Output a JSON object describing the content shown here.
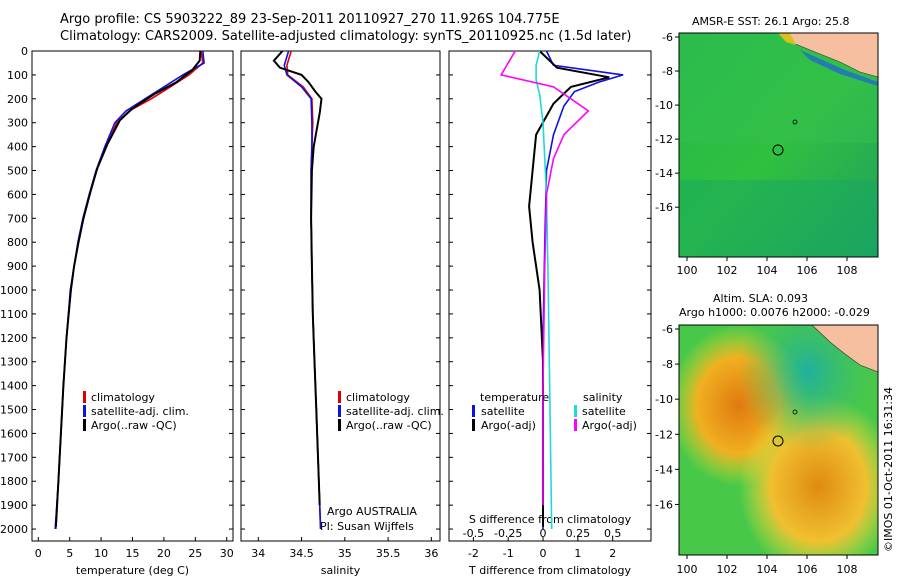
{
  "header": {
    "line1": "Argo profile: CS 5903222_89 23-Sep-2011 20110927_270 11.926S 104.775E",
    "line2": "Climatology: CARS2009. Satellite-adjusted climatology: synTS_20110925.nc (1.5d later)"
  },
  "colors": {
    "climatology": "#e00000",
    "satellite": "#1010e0",
    "argo": "#000000",
    "salinity_sat": "#20d8e0",
    "salinity_argo": "#ff00ff"
  },
  "depth_ticks": [
    0,
    100,
    200,
    300,
    400,
    500,
    600,
    700,
    800,
    900,
    1000,
    1100,
    1200,
    1300,
    1400,
    1500,
    1600,
    1700,
    1800,
    1900,
    2000
  ],
  "legend_ts": [
    "climatology",
    "satellite-adj. clim.",
    "Argo(..raw -QC)"
  ],
  "legend_diff": {
    "temp_head": "temperature",
    "sal_head": "salinity",
    "sat": "satellite",
    "argo": "Argo(-adj)"
  },
  "float_info": {
    "line1": "Argo AUSTRALIA",
    "line2": "PI: Susan Wijffels"
  },
  "map_sst": {
    "title": "AMSR-E SST: 26.1  Argo: 25.8",
    "ylabels": [
      "-6",
      "-8",
      "-10",
      "-12",
      "-14",
      "-16"
    ],
    "xlabels": [
      "100",
      "102",
      "104",
      "106",
      "108"
    ]
  },
  "map_sla": {
    "title1": "Altim. SLA: 0.093",
    "title2": "Argo h1000: 0.0076 h2000: -0.029",
    "ylabels": [
      "-6",
      "-8",
      "-10",
      "-12",
      "-14",
      "-16"
    ],
    "xlabels": [
      "100",
      "102",
      "104",
      "106",
      "108"
    ]
  },
  "footer": "©IMOS 01-Oct-2011 16:31:34",
  "chart_data": [
    {
      "type": "line",
      "xlabel": "temperature (deg C)",
      "ylim": [
        2050,
        0
      ],
      "xlim": [
        -1,
        31
      ],
      "xticks": [
        0,
        5,
        10,
        15,
        20,
        25,
        30
      ],
      "series": [
        {
          "name": "climatology",
          "color": "#e00000",
          "points": [
            [
              25.9,
              0
            ],
            [
              26.2,
              50
            ],
            [
              24,
              100
            ],
            [
              21,
              150
            ],
            [
              18,
              200
            ],
            [
              14.5,
              250
            ],
            [
              12.5,
              300
            ],
            [
              10.8,
              400
            ],
            [
              9.3,
              500
            ],
            [
              8.2,
              600
            ],
            [
              7.2,
              700
            ],
            [
              6.4,
              800
            ],
            [
              5.7,
              900
            ],
            [
              5.2,
              1000
            ],
            [
              4.5,
              1200
            ],
            [
              4.0,
              1400
            ],
            [
              3.6,
              1600
            ],
            [
              3.2,
              1800
            ],
            [
              2.8,
              2000
            ]
          ]
        },
        {
          "name": "satellite-adj. clim.",
          "color": "#1010e0",
          "points": [
            [
              26.2,
              0
            ],
            [
              26.4,
              50
            ],
            [
              23,
              100
            ],
            [
              20,
              150
            ],
            [
              17,
              200
            ],
            [
              14,
              250
            ],
            [
              12.2,
              300
            ],
            [
              10.6,
              400
            ],
            [
              9.2,
              500
            ],
            [
              8.1,
              600
            ],
            [
              7.1,
              700
            ],
            [
              6.3,
              800
            ],
            [
              5.7,
              900
            ],
            [
              5.1,
              1000
            ],
            [
              4.5,
              1200
            ],
            [
              4.0,
              1400
            ],
            [
              3.6,
              1600
            ],
            [
              3.2,
              1800
            ],
            [
              2.7,
              2000
            ]
          ]
        },
        {
          "name": "Argo(..raw -QC)",
          "color": "#000000",
          "points": [
            [
              25.8,
              0
            ],
            [
              25.7,
              40
            ],
            [
              24.5,
              80
            ],
            [
              22,
              130
            ],
            [
              18.5,
              180
            ],
            [
              15,
              240
            ],
            [
              13,
              290
            ],
            [
              11,
              390
            ],
            [
              9.4,
              490
            ],
            [
              8.3,
              590
            ],
            [
              7.2,
              700
            ],
            [
              6.4,
              800
            ],
            [
              5.7,
              900
            ],
            [
              5.2,
              1000
            ],
            [
              4.5,
              1200
            ],
            [
              4.0,
              1400
            ],
            [
              3.6,
              1600
            ],
            [
              3.2,
              1800
            ],
            [
              2.8,
              1990
            ]
          ]
        }
      ]
    },
    {
      "type": "line",
      "xlabel": "salinity",
      "ylim": [
        2050,
        0
      ],
      "xlim": [
        33.8,
        36.1
      ],
      "xticks": [
        34,
        34.5,
        35,
        35.5,
        36
      ],
      "series": [
        {
          "name": "climatology",
          "color": "#e00000",
          "points": [
            [
              34.38,
              0
            ],
            [
              34.33,
              60
            ],
            [
              34.34,
              100
            ],
            [
              34.52,
              150
            ],
            [
              34.62,
              200
            ],
            [
              34.63,
              300
            ],
            [
              34.62,
              400
            ],
            [
              34.61,
              500
            ],
            [
              34.61,
              700
            ],
            [
              34.62,
              900
            ],
            [
              34.63,
              1100
            ],
            [
              34.65,
              1300
            ],
            [
              34.67,
              1500
            ],
            [
              34.69,
              1700
            ],
            [
              34.71,
              1900
            ],
            [
              34.72,
              2000
            ]
          ]
        },
        {
          "name": "satellite-adj. clim.",
          "color": "#1010e0",
          "points": [
            [
              34.35,
              0
            ],
            [
              34.3,
              60
            ],
            [
              34.33,
              100
            ],
            [
              34.5,
              150
            ],
            [
              34.61,
              200
            ],
            [
              34.62,
              300
            ],
            [
              34.62,
              400
            ],
            [
              34.61,
              500
            ],
            [
              34.61,
              700
            ],
            [
              34.62,
              900
            ],
            [
              34.63,
              1100
            ],
            [
              34.65,
              1300
            ],
            [
              34.67,
              1500
            ],
            [
              34.69,
              1700
            ],
            [
              34.71,
              1900
            ],
            [
              34.72,
              2000
            ]
          ]
        },
        {
          "name": "Argo(..raw -QC)",
          "color": "#000000",
          "points": [
            [
              34.28,
              0
            ],
            [
              34.18,
              40
            ],
            [
              34.25,
              70
            ],
            [
              34.5,
              100
            ],
            [
              34.58,
              130
            ],
            [
              34.66,
              170
            ],
            [
              34.73,
              200
            ],
            [
              34.71,
              260
            ],
            [
              34.68,
              320
            ],
            [
              34.64,
              400
            ],
            [
              34.62,
              500
            ],
            [
              34.61,
              700
            ],
            [
              34.62,
              900
            ],
            [
              34.63,
              1100
            ],
            [
              34.65,
              1300
            ],
            [
              34.67,
              1500
            ],
            [
              34.69,
              1700
            ],
            [
              34.71,
              1900
            ]
          ]
        }
      ]
    },
    {
      "type": "line",
      "xlabel": "T difference from climatology",
      "xlabel_top": "S difference from climatology",
      "ylim": [
        2050,
        0
      ],
      "xlim": [
        -2.7,
        3.1
      ],
      "xticks": [
        -2,
        -1,
        0,
        1,
        2
      ],
      "top_ticks": [
        {
          "label": "-0.5",
          "t": -2
        },
        {
          "label": "-0.25",
          "t": -1
        },
        {
          "label": "0",
          "t": 0
        },
        {
          "label": "0.25",
          "t": 1
        },
        {
          "label": "0.5",
          "t": 2
        }
      ],
      "series": [
        {
          "name": "temperature satellite",
          "color": "#1010e0",
          "points": [
            [
              0.1,
              0
            ],
            [
              0.3,
              60
            ],
            [
              2.3,
              100
            ],
            [
              1.6,
              130
            ],
            [
              0.9,
              170
            ],
            [
              0.6,
              230
            ],
            [
              0.3,
              350
            ],
            [
              0.1,
              500
            ],
            [
              0.05,
              800
            ],
            [
              0,
              1200
            ],
            [
              0,
              2000
            ]
          ]
        },
        {
          "name": "temperature Argo(-adj)",
          "color": "#000000",
          "points": [
            [
              -0.1,
              0
            ],
            [
              0.4,
              70
            ],
            [
              1.9,
              110
            ],
            [
              0.8,
              150
            ],
            [
              0.3,
              220
            ],
            [
              -0.2,
              350
            ],
            [
              -0.3,
              500
            ],
            [
              -0.4,
              650
            ],
            [
              -0.3,
              800
            ],
            [
              -0.1,
              1000
            ],
            [
              0,
              1300
            ],
            [
              0,
              1700
            ],
            [
              0,
              1990
            ]
          ]
        },
        {
          "name": "salinity satellite",
          "color": "#20d8e0",
          "points": [
            [
              -0.1,
              0
            ],
            [
              -0.2,
              60
            ],
            [
              -0.2,
              120
            ],
            [
              -0.1,
              180
            ],
            [
              0,
              300
            ],
            [
              0.1,
              600
            ],
            [
              0.15,
              1000
            ],
            [
              0.2,
              1500
            ],
            [
              0.25,
              2000
            ]
          ]
        },
        {
          "name": "salinity Argo(-adj)",
          "color": "#ff00ff",
          "points": [
            [
              -0.8,
              0
            ],
            [
              -1.2,
              100
            ],
            [
              0.3,
              150
            ],
            [
              1.3,
              250
            ],
            [
              0.6,
              350
            ],
            [
              0.3,
              450
            ],
            [
              0.1,
              600
            ],
            [
              0.05,
              900
            ],
            [
              0,
              1400
            ],
            [
              0,
              1900
            ]
          ]
        }
      ]
    }
  ]
}
